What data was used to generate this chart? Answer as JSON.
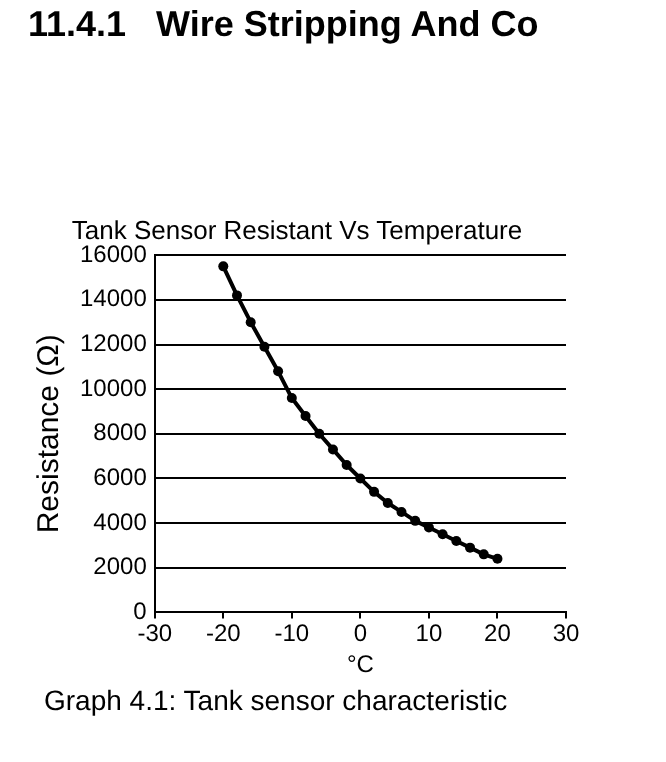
{
  "chart_data": {
    "type": "line",
    "title": "Tank Sensor Resistant Vs Temperature",
    "xlabel": "°C",
    "ylabel": "Resistance (Ω)",
    "annotations": [
      "11.4.1   Wire Stripping And Co",
      "Graph 4.1: Tank sensor characteristic"
    ],
    "x": [
      -20,
      -18,
      -16,
      -14,
      -12,
      -10,
      -8,
      -6,
      -4,
      -2,
      0,
      2,
      4,
      6,
      8,
      10,
      12,
      14,
      16,
      18,
      20
    ],
    "series": [
      {
        "color": "#000000",
        "values": [
          15500,
          14200,
          13000,
          11900,
          10800,
          9600,
          8800,
          8000,
          7300,
          6600,
          6000,
          5400,
          4900,
          4500,
          4100,
          3800,
          3500,
          3200,
          2900,
          2600,
          2400
        ]
      }
    ],
    "xlim": [
      -30,
      30
    ],
    "xticks": [
      -30,
      -20,
      -10,
      0,
      10,
      20,
      30
    ],
    "ylim": [
      0,
      16000
    ],
    "yticks": [
      0,
      2000,
      4000,
      6000,
      8000,
      10000,
      12000,
      14000,
      16000
    ],
    "grid": "y",
    "legend": false,
    "marker": "circle",
    "line_style": "solid"
  }
}
